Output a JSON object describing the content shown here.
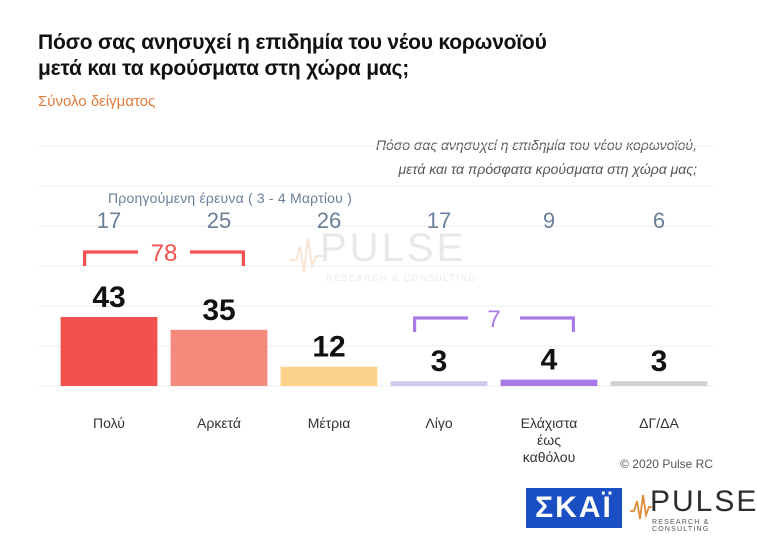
{
  "header": {
    "title_line1": "Πόσο σας ανησυχεί η επιδημία του νέου κορωνοϊού",
    "title_line2": "μετά και τα κρούσματα στη χώρα μας;",
    "subtitle": "Σύνολο δείγματος"
  },
  "question": {
    "line1": "Πόσο σας ανησυχεί η επιδημία του νέου κορωνοϊού,",
    "line2": "μετά και τα πρόσφατα κρούσματα στη χώρα μας;"
  },
  "previous_label": "Προηγούμενη έρευνα  ( 3 - 4  Μαρτίου )",
  "chart_data": {
    "type": "bar",
    "categories": [
      "Πολύ",
      "Αρκετά",
      "Μέτρια",
      "Λίγο",
      "Ελάχιστα έως καθόλου",
      "ΔΓ/ΔΑ"
    ],
    "category_lines": [
      [
        "Πολύ"
      ],
      [
        "Αρκετά"
      ],
      [
        "Μέτρια"
      ],
      [
        "Λίγο"
      ],
      [
        "Ελάχιστα",
        "έως",
        "καθόλου"
      ],
      [
        "ΔΓ/ΔΑ"
      ]
    ],
    "values": [
      43,
      35,
      12,
      3,
      4,
      3
    ],
    "previous_values": [
      17,
      25,
      26,
      17,
      9,
      6
    ],
    "colors": [
      "#f2514d",
      "#f38a7c",
      "#fcd189",
      "#d5c8ee",
      "#a97be9",
      "#d2d2d2"
    ],
    "brackets": [
      {
        "from": 0,
        "to": 1,
        "value": "78",
        "color": "#f2514d"
      },
      {
        "from": 3,
        "to": 4,
        "value": "7",
        "color": "#a97be9"
      }
    ],
    "ylim": [
      0,
      50
    ],
    "grid": true
  },
  "footer": {
    "copyright": "© 2020 Pulse RC",
    "skai_logo": "ΣΚΑΪ",
    "pulse_logo": "PULSE",
    "pulse_sub": "RESEARCH & CONSULTING"
  },
  "watermark": {
    "word": "PULSE",
    "sub": "RESEARCH & CONSULTING"
  }
}
